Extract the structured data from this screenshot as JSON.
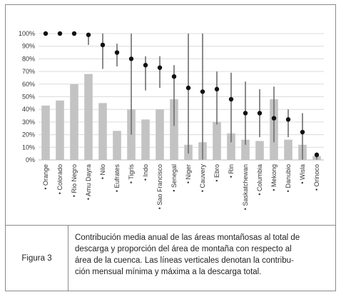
{
  "chart_data": {
    "type": "bar",
    "yticks": [
      "100%",
      "90%",
      "80%",
      "70%",
      "60%",
      "50%",
      "40%",
      "30%",
      "20%",
      "10%",
      "0%"
    ],
    "ylim": [
      0,
      100
    ],
    "categories": [
      "• Orange",
      "• Colorado",
      "• Rio Negro",
      "• Amu Dayra",
      "• Nilo",
      "• Eufrates",
      "• Tigris",
      "• Indo",
      "• Sao Francisco",
      "• Senegal",
      "• Niger",
      "• Cauvery",
      "• Ebro",
      "• Rin",
      "• Saskatchewan",
      "• Columbia",
      "• Mekong",
      "• Danubio",
      "• Wisla",
      "• Orinoco"
    ],
    "series": [
      {
        "kind": "bar",
        "values": [
          43,
          47,
          60,
          68,
          45,
          23,
          40,
          32,
          40,
          48,
          12,
          14,
          30,
          21,
          16,
          15,
          48,
          16,
          12,
          3
        ]
      },
      {
        "kind": "point",
        "values": [
          100,
          100,
          100,
          99,
          91,
          85,
          80,
          75,
          73,
          66,
          57,
          54,
          56,
          48,
          37,
          37,
          33,
          32,
          22,
          4
        ]
      }
    ],
    "ranges": [
      [
        100,
        100
      ],
      [
        100,
        100
      ],
      [
        100,
        100
      ],
      [
        91,
        100
      ],
      [
        72,
        100
      ],
      [
        74,
        92
      ],
      [
        20,
        100
      ],
      [
        55,
        82
      ],
      [
        57,
        82
      ],
      [
        27,
        75
      ],
      [
        5,
        100
      ],
      [
        0,
        100
      ],
      [
        28,
        70
      ],
      [
        14,
        69
      ],
      [
        12,
        62
      ],
      [
        18,
        56
      ],
      [
        14,
        58
      ],
      [
        18,
        40
      ],
      [
        0,
        37
      ],
      [
        0,
        6
      ]
    ],
    "colors": {
      "bar": "#c3c3c3",
      "marker": "#111111",
      "range": "#6e6e6e",
      "grid": "#dcdcdc"
    }
  },
  "caption": {
    "label": "Figura 3",
    "lines": [
      "Contribución media anual de las áreas montañosas al total de",
      "descarga y proporción del área de montaña con respecto al",
      "área de la cuenca. Las líneas verticales denotan la contribu-",
      "ción mensual mínima y máxima a la descarga total."
    ]
  }
}
